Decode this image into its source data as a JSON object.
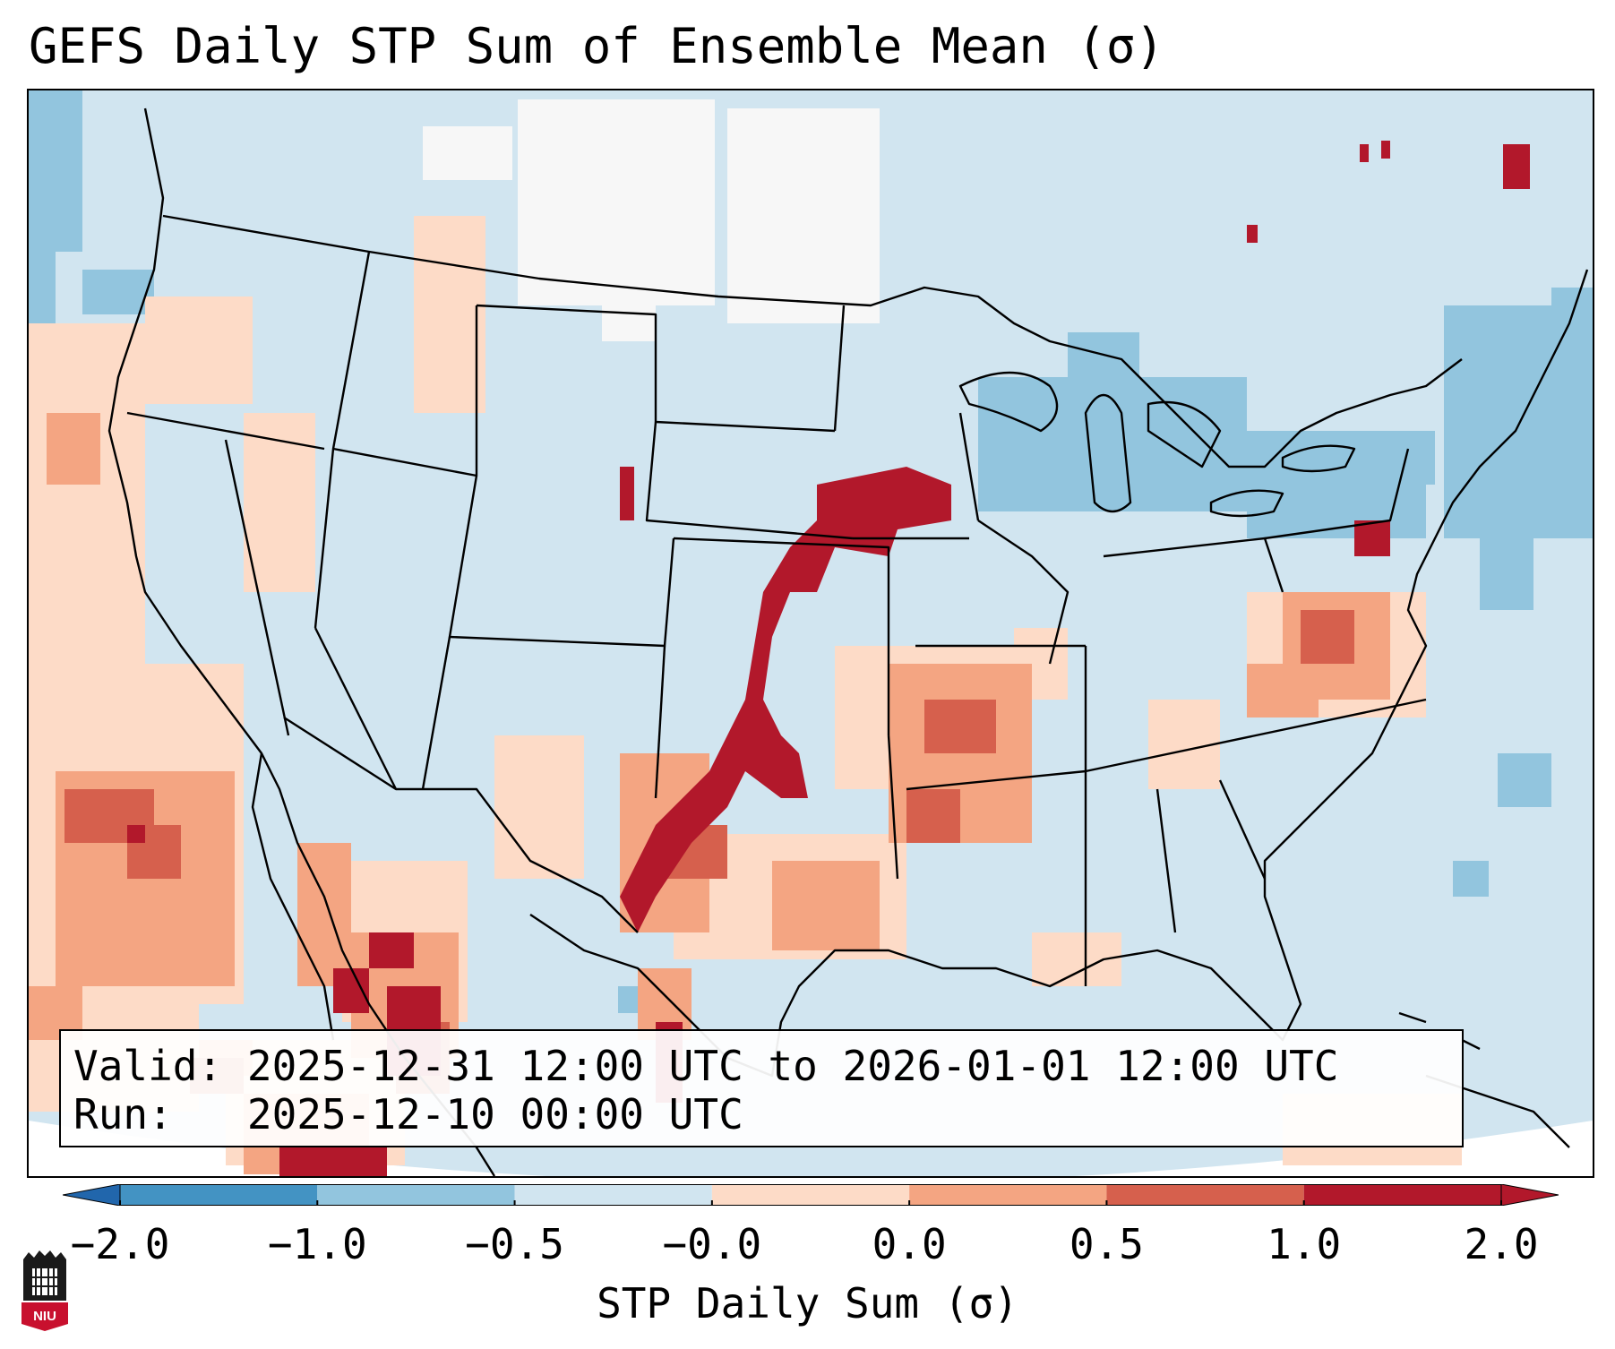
{
  "title": "GEFS Daily STP Sum of Ensemble Mean (σ)",
  "info": {
    "valid_label": "Valid:",
    "valid_value": "2025-12-31 12:00 UTC to 2026-01-01 12:00 UTC",
    "run_label": "Run:",
    "run_value": "2025-12-10 00:00 UTC"
  },
  "colorbar": {
    "label": "STP Daily Sum (σ)",
    "ticks": [
      "−2.0",
      "−1.0",
      "−0.5",
      "−0.0",
      "0.0",
      "0.5",
      "1.0",
      "2.0"
    ],
    "colors": [
      "#4393c3",
      "#92c5de",
      "#d1e5f0",
      "#f7f7f7",
      "#fddbc7",
      "#f4a582",
      "#d6604d",
      "#b2182b"
    ],
    "under_color": "#2166ac",
    "over_color": "#b2182b"
  },
  "map": {
    "background_color": "#d1e5f0",
    "land_border_color": "#000000"
  },
  "logo": {
    "text": "NIU"
  }
}
